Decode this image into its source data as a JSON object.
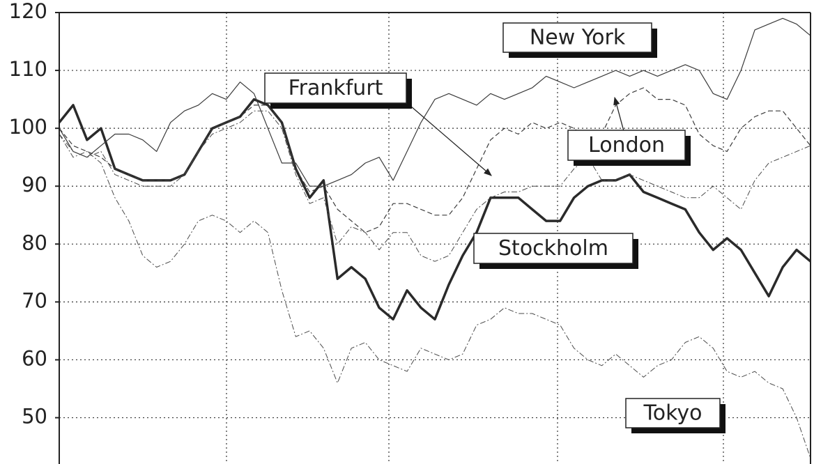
{
  "chart_data": {
    "type": "line",
    "ylim": [
      42,
      120
    ],
    "yticks": [
      50,
      60,
      70,
      80,
      90,
      100,
      110,
      120
    ],
    "grid": true,
    "series": [
      {
        "name": "Stockholm",
        "color": "#2a2a2a",
        "line_style": "solid",
        "line_width": 3.5,
        "values": [
          101,
          104,
          98,
          100,
          93,
          92,
          91,
          91,
          91,
          92,
          96,
          100,
          101,
          102,
          105,
          104,
          101,
          93,
          88,
          91,
          74,
          76,
          74,
          69,
          67,
          72,
          69,
          67,
          73,
          78,
          82,
          88,
          88,
          88,
          86,
          84,
          84,
          88,
          90,
          91,
          91,
          92,
          89,
          88,
          87,
          86,
          82,
          79,
          81,
          79,
          75,
          71,
          76,
          79,
          77
        ]
      },
      {
        "name": "New York",
        "color": "#3a3a3a",
        "line_style": "solid",
        "line_width": 1.2,
        "values": [
          100,
          96,
          95,
          97,
          99,
          99,
          98,
          96,
          101,
          103,
          104,
          106,
          105,
          108,
          106,
          100,
          94,
          94,
          90,
          90,
          91,
          92,
          94,
          95,
          91,
          96,
          101,
          105,
          106,
          105,
          104,
          106,
          105,
          106,
          107,
          109,
          108,
          107,
          108,
          109,
          110,
          109,
          110,
          109,
          110,
          111,
          110,
          106,
          105,
          110,
          117,
          118,
          119,
          118,
          116
        ]
      },
      {
        "name": "London",
        "color": "#3a3a3a",
        "line_style": "dashed",
        "line_width": 1.2,
        "values": [
          100,
          97,
          96,
          95,
          93,
          92,
          91,
          91,
          91,
          92,
          96,
          100,
          101,
          102,
          104,
          104,
          101,
          93,
          89,
          90,
          86,
          84,
          82,
          83,
          87,
          87,
          86,
          85,
          85,
          88,
          93,
          98,
          100,
          99,
          101,
          100,
          101,
          100,
          98,
          99,
          104,
          106,
          107,
          105,
          105,
          104,
          99,
          97,
          96,
          100,
          102,
          103,
          103,
          100,
          97
        ]
      },
      {
        "name": "Frankfurt",
        "color": "#4a4a4a",
        "line_style": "dashdot",
        "line_width": 1,
        "values": [
          99,
          96,
          95,
          96,
          92,
          91,
          90,
          90,
          90,
          92,
          96,
          99,
          100,
          101,
          103,
          103,
          100,
          92,
          87,
          88,
          80,
          83,
          82,
          79,
          82,
          82,
          78,
          77,
          78,
          82,
          86,
          88,
          89,
          89,
          90,
          90,
          90,
          93,
          95,
          91,
          91,
          92,
          91,
          90,
          89,
          88,
          88,
          90,
          88,
          86,
          91,
          94,
          95,
          96,
          97
        ]
      },
      {
        "name": "Tokyo",
        "color": "#4a4a4a",
        "line_style": "dashdot",
        "line_width": 1,
        "values": [
          99,
          95,
          96,
          94,
          88,
          84,
          78,
          76,
          77,
          80,
          84,
          85,
          84,
          82,
          84,
          82,
          72,
          64,
          65,
          62,
          56,
          62,
          63,
          60,
          59,
          58,
          62,
          61,
          60,
          61,
          66,
          67,
          69,
          68,
          68,
          67,
          66,
          62,
          60,
          59,
          61,
          59,
          57,
          59,
          60,
          63,
          64,
          62,
          58,
          57,
          58,
          56,
          55,
          50,
          43
        ]
      }
    ]
  }
}
